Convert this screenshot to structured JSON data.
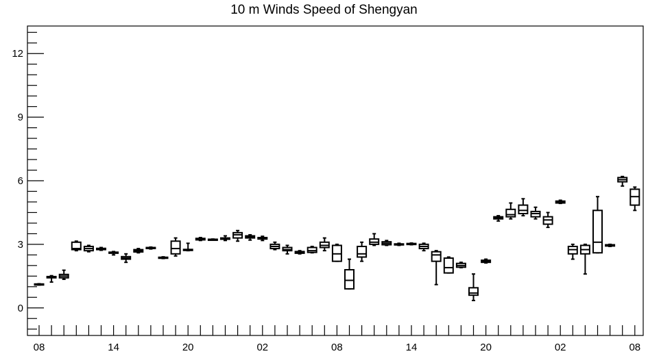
{
  "chart_data": {
    "type": "box",
    "title": "10 m Winds Speed of Shengyan",
    "xlabel": "",
    "ylabel": "",
    "ylim": [
      -1.3,
      13.3
    ],
    "y_ticks": [
      0,
      3,
      6,
      9,
      12
    ],
    "y_minor_step": 0.5,
    "x_tick_labels": [
      {
        "label": "08",
        "index": 0
      },
      {
        "label": "14",
        "index": 6
      },
      {
        "label": "20",
        "index": 12
      },
      {
        "label": "02",
        "index": 18
      },
      {
        "label": "08",
        "index": 24
      },
      {
        "label": "14",
        "index": 30
      },
      {
        "label": "20",
        "index": 36
      },
      {
        "label": "02",
        "index": 42
      },
      {
        "label": "08",
        "index": 48
      }
    ],
    "x_tick_count": 49,
    "grid": false,
    "legend": "none",
    "boxes": [
      {
        "i": 0,
        "min": 1.08,
        "q1": 1.09,
        "med": 1.11,
        "q3": 1.13,
        "max": 1.14
      },
      {
        "i": 1,
        "min": 1.22,
        "q1": 1.42,
        "med": 1.45,
        "q3": 1.48,
        "max": 1.52
      },
      {
        "i": 2,
        "min": 1.35,
        "q1": 1.42,
        "med": 1.5,
        "q3": 1.58,
        "max": 1.78
      },
      {
        "i": 3,
        "min": 2.7,
        "q1": 2.75,
        "med": 2.8,
        "q3": 3.1,
        "max": 3.15
      },
      {
        "i": 4,
        "min": 2.65,
        "q1": 2.7,
        "med": 2.8,
        "q3": 2.9,
        "max": 2.95
      },
      {
        "i": 5,
        "min": 2.72,
        "q1": 2.75,
        "med": 2.78,
        "q3": 2.81,
        "max": 2.85
      },
      {
        "i": 6,
        "min": 2.5,
        "q1": 2.58,
        "med": 2.6,
        "q3": 2.63,
        "max": 2.66
      },
      {
        "i": 7,
        "min": 2.15,
        "q1": 2.3,
        "med": 2.35,
        "q3": 2.42,
        "max": 2.55
      },
      {
        "i": 8,
        "min": 2.6,
        "q1": 2.64,
        "med": 2.7,
        "q3": 2.75,
        "max": 2.8
      },
      {
        "i": 9,
        "min": 2.78,
        "q1": 2.81,
        "med": 2.83,
        "q3": 2.85,
        "max": 2.87
      },
      {
        "i": 10,
        "min": 2.33,
        "q1": 2.35,
        "med": 2.37,
        "q3": 2.39,
        "max": 2.41
      },
      {
        "i": 11,
        "min": 2.45,
        "q1": 2.55,
        "med": 2.8,
        "q3": 3.15,
        "max": 3.3
      },
      {
        "i": 12,
        "min": 2.7,
        "q1": 2.72,
        "med": 2.74,
        "q3": 2.76,
        "max": 3.05
      },
      {
        "i": 13,
        "min": 3.18,
        "q1": 3.21,
        "med": 3.24,
        "q3": 3.28,
        "max": 3.32
      },
      {
        "i": 14,
        "min": 3.21,
        "q1": 3.22,
        "med": 3.23,
        "q3": 3.24,
        "max": 3.25
      },
      {
        "i": 15,
        "min": 3.18,
        "q1": 3.24,
        "med": 3.27,
        "q3": 3.3,
        "max": 3.4
      },
      {
        "i": 16,
        "min": 3.15,
        "q1": 3.3,
        "med": 3.45,
        "q3": 3.55,
        "max": 3.65
      },
      {
        "i": 17,
        "min": 3.2,
        "q1": 3.3,
        "med": 3.35,
        "q3": 3.4,
        "max": 3.45
      },
      {
        "i": 18,
        "min": 3.18,
        "q1": 3.25,
        "med": 3.28,
        "q3": 3.32,
        "max": 3.38
      },
      {
        "i": 19,
        "min": 2.75,
        "q1": 2.8,
        "med": 2.9,
        "q3": 3.0,
        "max": 3.1
      },
      {
        "i": 20,
        "min": 2.55,
        "q1": 2.7,
        "med": 2.75,
        "q3": 2.85,
        "max": 2.95
      },
      {
        "i": 21,
        "min": 2.55,
        "q1": 2.58,
        "med": 2.62,
        "q3": 2.66,
        "max": 2.7
      },
      {
        "i": 22,
        "min": 2.6,
        "q1": 2.62,
        "med": 2.7,
        "q3": 2.85,
        "max": 2.9
      },
      {
        "i": 23,
        "min": 2.7,
        "q1": 2.85,
        "med": 2.95,
        "q3": 3.1,
        "max": 3.3
      },
      {
        "i": 24,
        "min": 2.2,
        "q1": 2.2,
        "med": 2.55,
        "q3": 2.95,
        "max": 3.0
      },
      {
        "i": 25,
        "min": 0.9,
        "q1": 0.9,
        "med": 1.3,
        "q3": 1.8,
        "max": 2.3
      },
      {
        "i": 26,
        "min": 2.2,
        "q1": 2.4,
        "med": 2.55,
        "q3": 2.9,
        "max": 3.1
      },
      {
        "i": 27,
        "min": 2.95,
        "q1": 3.0,
        "med": 3.1,
        "q3": 3.25,
        "max": 3.5
      },
      {
        "i": 28,
        "min": 2.95,
        "q1": 2.98,
        "med": 3.05,
        "q3": 3.12,
        "max": 3.18
      },
      {
        "i": 29,
        "min": 2.95,
        "q1": 2.98,
        "med": 3.0,
        "q3": 3.02,
        "max": 3.05
      },
      {
        "i": 30,
        "min": 2.98,
        "q1": 3.0,
        "med": 3.02,
        "q3": 3.04,
        "max": 3.06
      },
      {
        "i": 31,
        "min": 2.7,
        "q1": 2.8,
        "med": 2.9,
        "q3": 3.0,
        "max": 3.05
      },
      {
        "i": 32,
        "min": 1.1,
        "q1": 2.2,
        "med": 2.5,
        "q3": 2.65,
        "max": 2.7
      },
      {
        "i": 33,
        "min": 1.65,
        "q1": 1.65,
        "med": 1.9,
        "q3": 2.35,
        "max": 2.4
      },
      {
        "i": 34,
        "min": 1.9,
        "q1": 1.92,
        "med": 2.0,
        "q3": 2.1,
        "max": 2.15
      },
      {
        "i": 35,
        "min": 0.35,
        "q1": 0.6,
        "med": 0.7,
        "q3": 0.95,
        "max": 1.6
      },
      {
        "i": 36,
        "min": 2.12,
        "q1": 2.15,
        "med": 2.2,
        "q3": 2.25,
        "max": 2.3
      },
      {
        "i": 37,
        "min": 4.1,
        "q1": 4.2,
        "med": 4.25,
        "q3": 4.3,
        "max": 4.35
      },
      {
        "i": 38,
        "min": 4.2,
        "q1": 4.3,
        "med": 4.4,
        "q3": 4.65,
        "max": 4.95
      },
      {
        "i": 39,
        "min": 4.35,
        "q1": 4.45,
        "med": 4.6,
        "q3": 4.85,
        "max": 5.15
      },
      {
        "i": 40,
        "min": 4.2,
        "q1": 4.3,
        "med": 4.45,
        "q3": 4.55,
        "max": 4.75
      },
      {
        "i": 41,
        "min": 3.8,
        "q1": 3.95,
        "med": 4.15,
        "q3": 4.3,
        "max": 4.5
      },
      {
        "i": 42,
        "min": 4.93,
        "q1": 4.95,
        "med": 5.0,
        "q3": 5.04,
        "max": 5.08
      },
      {
        "i": 43,
        "min": 2.3,
        "q1": 2.55,
        "med": 2.75,
        "q3": 2.9,
        "max": 3.0
      },
      {
        "i": 44,
        "min": 1.6,
        "q1": 2.55,
        "med": 2.75,
        "q3": 2.95,
        "max": 3.0
      },
      {
        "i": 45,
        "min": 2.6,
        "q1": 2.6,
        "med": 3.1,
        "q3": 4.6,
        "max": 5.25
      },
      {
        "i": 46,
        "min": 2.9,
        "q1": 2.92,
        "med": 2.95,
        "q3": 2.98,
        "max": 3.0
      },
      {
        "i": 47,
        "min": 5.75,
        "q1": 5.95,
        "med": 6.05,
        "q3": 6.15,
        "max": 6.2
      },
      {
        "i": 48,
        "min": 4.6,
        "q1": 4.85,
        "med": 5.25,
        "q3": 5.6,
        "max": 5.7
      }
    ]
  }
}
